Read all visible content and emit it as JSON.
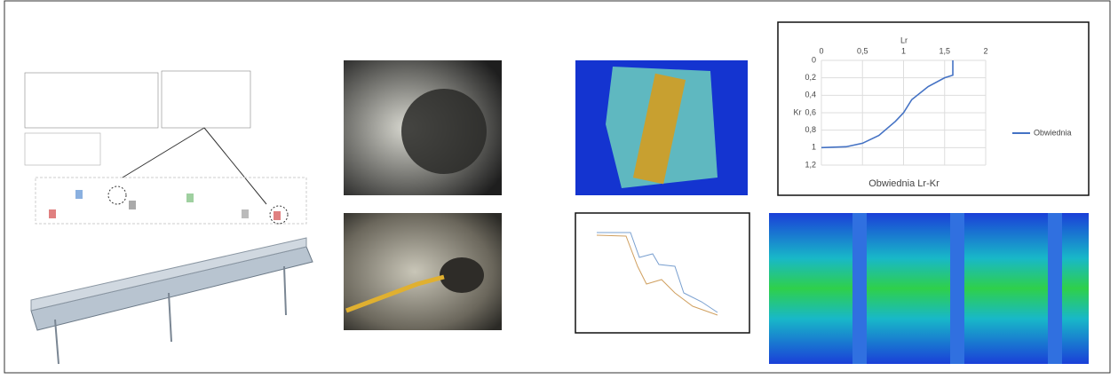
{
  "chart_data": {
    "type": "line",
    "title": "Obwiednia Lr-Kr",
    "x_label": "Lr",
    "y_label": "Kr",
    "series": [
      {
        "name": "Obwiednia",
        "color": "#4472c4",
        "x": [
          0,
          0.3,
          0.5,
          0.7,
          0.9,
          1.0,
          1.1,
          1.3,
          1.5,
          1.6,
          1.6
        ],
        "values": [
          1.0,
          0.99,
          0.95,
          0.86,
          0.7,
          0.6,
          0.45,
          0.3,
          0.2,
          0.17,
          0
        ]
      }
    ],
    "xlim": [
      0,
      2
    ],
    "xticks": [
      0,
      {
        "value": 0.5,
        "label": "0,5"
      },
      1,
      {
        "value": 1.5,
        "label": "1,5"
      },
      2
    ],
    "ylim": [
      0,
      1.2
    ],
    "yticks": [
      0,
      {
        "value": 0.2,
        "label": "0,2"
      },
      {
        "value": 0.4,
        "label": "0,4"
      },
      {
        "value": 0.6,
        "label": "0,6"
      },
      {
        "value": 0.8,
        "label": "0,8"
      },
      1,
      {
        "value": 1.2,
        "label": "1,2"
      }
    ],
    "grid": true
  }
}
